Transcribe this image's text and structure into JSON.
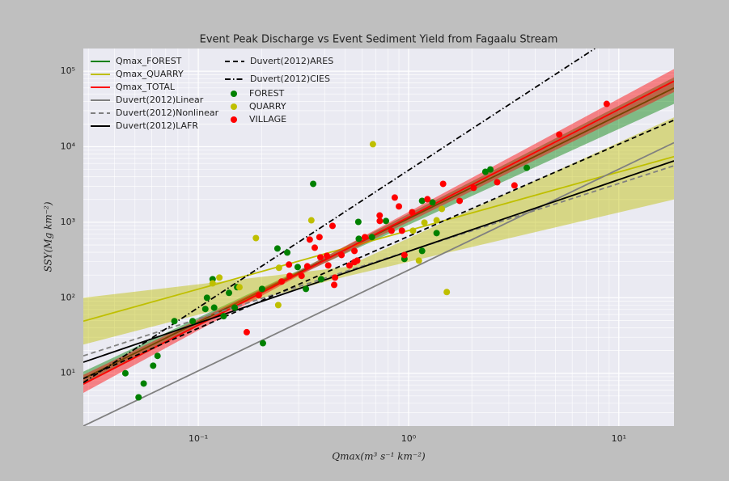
{
  "chart_data": {
    "type": "scatter",
    "title": "Event Peak Discharge vs Event Sediment Yield from Fagaalu Stream",
    "x_label": "Qmax(m³ s⁻¹ km⁻²)",
    "y_label": "SSY(Mg km⁻²)",
    "log_x": true,
    "log_y": true,
    "grid": true,
    "minor_grid": true,
    "xlim": [
      0.0284,
      18.3
    ],
    "ylim": [
      2,
      200000
    ],
    "xticks": [
      {
        "value": 0.1,
        "label": "10⁻¹"
      },
      {
        "value": 1,
        "label": "10⁰"
      },
      {
        "value": 10,
        "label": "10¹"
      }
    ],
    "yticks": [
      {
        "value": 10,
        "label": "10¹"
      },
      {
        "value": 100,
        "label": "10²"
      },
      {
        "value": 1000,
        "label": "10³"
      },
      {
        "value": 10000,
        "label": "10⁴"
      },
      {
        "value": 100000,
        "label": "10⁵"
      }
    ],
    "series": [
      {
        "name": "Qmax_FOREST",
        "type": "line",
        "style": "solid",
        "color": "#008000",
        "x": [
          0.0284,
          18.3
        ],
        "values": [
          8.5,
          60000
        ],
        "band": {
          "x": [
            0.0284,
            0.3,
            18.3
          ],
          "lower": [
            7,
            200,
            37000
          ],
          "upper": [
            10.5,
            230,
            83000
          ],
          "color": "#008000"
        }
      },
      {
        "name": "Qmax_QUARRY",
        "type": "line",
        "style": "solid",
        "color": "#bfbf00",
        "x": [
          0.0284,
          18.3
        ],
        "values": [
          49,
          7400
        ],
        "band": {
          "x": [
            0.0284,
            0.5,
            18.3
          ],
          "lower": [
            24,
            190,
            2000
          ],
          "upper": [
            100,
            255,
            24500
          ],
          "color": "#bfbf00"
        }
      },
      {
        "name": "Qmax_TOTAL",
        "type": "line",
        "style": "solid",
        "color": "#ff0000",
        "x": [
          0.0284,
          18.3
        ],
        "values": [
          7.2,
          74000
        ],
        "band": {
          "x": [
            0.0284,
            0.3,
            18.3
          ],
          "lower": [
            5.5,
            195,
            53000
          ],
          "upper": [
            9.5,
            225,
            107000
          ],
          "color": "#ff0000"
        }
      },
      {
        "name": "Duvert(2012)Linear",
        "type": "line",
        "style": "solid",
        "color": "#808080",
        "x": [
          0.0284,
          18.3
        ],
        "values": [
          2,
          11300
        ]
      },
      {
        "name": "Duvert(2012)Nonlinear",
        "type": "line",
        "style": "dashed",
        "color": "#808080",
        "x": [
          0.0284,
          18.3
        ],
        "values": [
          17,
          5600
        ]
      },
      {
        "name": "Duvert(2012)LAFR",
        "type": "line",
        "style": "solid",
        "color": "#000000",
        "x": [
          0.0284,
          18.3
        ],
        "values": [
          14,
          6500
        ]
      },
      {
        "name": "Duvert(2012)ARES",
        "type": "line",
        "style": "dashed",
        "color": "#000000",
        "x": [
          0.0284,
          18.3
        ],
        "values": [
          8.5,
          22500
        ]
      },
      {
        "name": "Duvert(2012)CIES",
        "type": "line",
        "style": "dashdot",
        "color": "#000000",
        "x": [
          0.0284,
          7.7
        ],
        "values": [
          7.5,
          200000
        ]
      },
      {
        "name": "FOREST",
        "type": "scatter",
        "color": "#008000",
        "x": [
          0.045,
          0.052,
          0.055,
          0.061,
          0.064,
          0.077,
          0.094,
          0.108,
          0.11,
          0.117,
          0.119,
          0.132,
          0.14,
          0.149,
          0.153,
          0.201,
          0.203,
          0.238,
          0.265,
          0.297,
          0.325,
          0.352,
          0.384,
          0.577,
          0.58,
          0.781,
          0.956,
          1.16,
          1.3,
          1.36,
          2.32,
          2.45,
          3.65,
          1.16,
          0.67
        ],
        "values": [
          10,
          4.8,
          7.3,
          12.6,
          17,
          49,
          49,
          71,
          100,
          176,
          74,
          57,
          116,
          74,
          138,
          131,
          25,
          449,
          397,
          255,
          131,
          3220,
          176,
          1010,
          604,
          1040,
          327,
          1920,
          1830,
          718,
          4660,
          5000,
          5260,
          417,
          635
        ]
      },
      {
        "name": "QUARRY",
        "type": "scatter",
        "color": "#bfbf00",
        "x": [
          0.677,
          0.188,
          0.345,
          0.24,
          1.52,
          1.12,
          0.126,
          0.157,
          0.242,
          1.44,
          1.19,
          1.05,
          1.36,
          0.117
        ],
        "values": [
          10800,
          617,
          1060,
          80,
          119,
          310,
          185,
          138,
          249,
          1500,
          990,
          773,
          1060,
          155
        ]
      },
      {
        "name": "VILLAGE",
        "type": "scatter",
        "color": "#ff0000",
        "x": [
          8.76,
          5.21,
          3.19,
          2.64,
          2.04,
          1.75,
          1.46,
          1.23,
          0.86,
          0.9,
          0.729,
          0.73,
          0.83,
          1.04,
          0.93,
          0.62,
          0.553,
          0.553,
          0.57,
          0.524,
          0.435,
          0.409,
          0.415,
          0.381,
          0.377,
          0.358,
          0.339,
          0.33,
          0.31,
          0.272,
          0.27,
          0.249,
          0.194,
          0.17,
          0.443,
          0.447,
          0.956,
          0.48
        ],
        "values": [
          36900,
          14500,
          3070,
          3390,
          2850,
          1920,
          3220,
          2020,
          2120,
          1620,
          1230,
          1040,
          773,
          1360,
          773,
          635,
          417,
          296,
          310,
          268,
          895,
          360,
          268,
          343,
          635,
          460,
          590,
          261,
          195,
          195,
          275,
          164,
          108,
          35,
          148,
          185,
          368,
          368
        ]
      }
    ]
  }
}
